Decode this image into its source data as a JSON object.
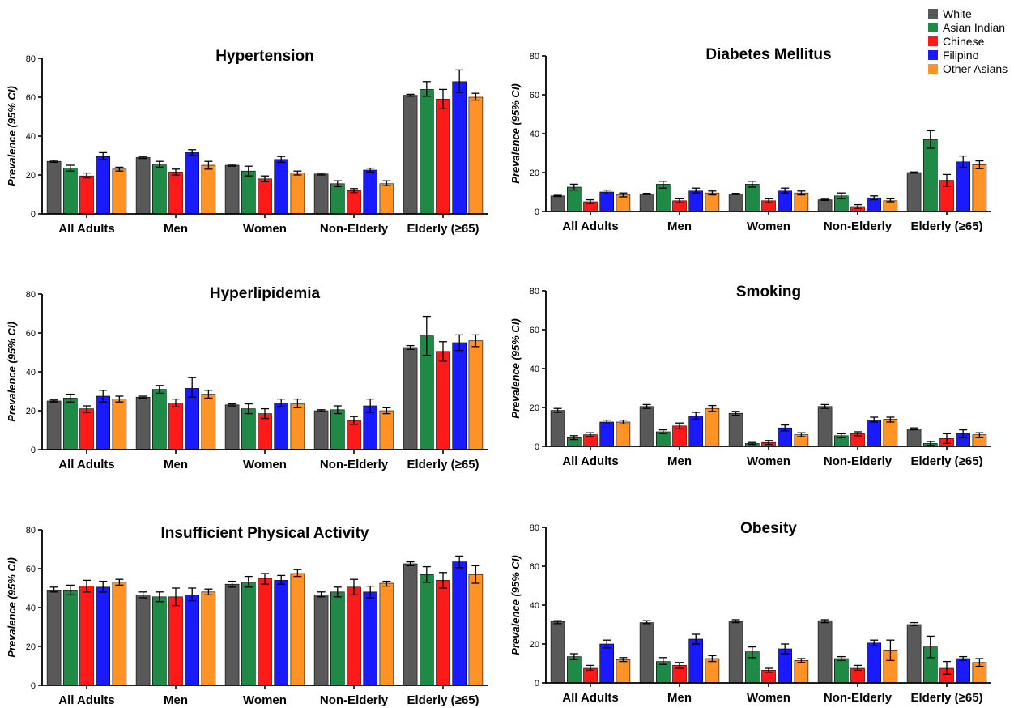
{
  "legend": {
    "items": [
      {
        "label": "White",
        "color": "#595959"
      },
      {
        "label": "Asian Indian",
        "color": "#1e8a46"
      },
      {
        "label": "Chinese",
        "color": "#ff1a1a"
      },
      {
        "label": "Filipino",
        "color": "#1a1aff"
      },
      {
        "label": "Other Asians",
        "color": "#ff9326"
      }
    ]
  },
  "chart_data": [
    {
      "type": "bar",
      "title": "Hypertension",
      "ylabel": "Prevalence (95% CI)",
      "ylim": [
        0,
        80
      ],
      "yticks": [
        "0",
        "20",
        "40",
        "60",
        "80"
      ],
      "categories": [
        "All Adults",
        "Men",
        "Women",
        "Non-Elderly",
        "Elderly (≥65)"
      ],
      "series": [
        {
          "name": "White",
          "values": [
            27,
            29,
            25,
            20.5,
            61
          ],
          "ci": [
            [
              26.5,
              27.5
            ],
            [
              28.5,
              29.5
            ],
            [
              24.5,
              25.5
            ],
            [
              20,
              21
            ],
            [
              60.5,
              61.5
            ]
          ]
        },
        {
          "name": "Asian Indian",
          "values": [
            23.5,
            25.5,
            22,
            15.5,
            64
          ],
          "ci": [
            [
              22,
              25
            ],
            [
              24,
              27
            ],
            [
              19.5,
              24.5
            ],
            [
              14,
              17
            ],
            [
              60.5,
              68
            ]
          ]
        },
        {
          "name": "Chinese",
          "values": [
            19.5,
            21.5,
            18,
            12,
            59
          ],
          "ci": [
            [
              18.5,
              21
            ],
            [
              20,
              23
            ],
            [
              16.5,
              19.5
            ],
            [
              11,
              13
            ],
            [
              54,
              64
            ]
          ]
        },
        {
          "name": "Filipino",
          "values": [
            29.5,
            31.5,
            28,
            22.5,
            68
          ],
          "ci": [
            [
              28,
              31.5
            ],
            [
              30,
              33
            ],
            [
              26.5,
              29.5
            ],
            [
              21.5,
              23.5
            ],
            [
              62.5,
              74
            ]
          ]
        },
        {
          "name": "Other Asians",
          "values": [
            23,
            25,
            21,
            15.5,
            60
          ],
          "ci": [
            [
              22,
              24
            ],
            [
              23,
              27
            ],
            [
              20,
              22
            ],
            [
              14.5,
              17
            ],
            [
              58.5,
              62
            ]
          ]
        }
      ]
    },
    {
      "type": "bar",
      "title": "Diabetes Mellitus",
      "ylabel": "Prevalence (95% CI)",
      "ylim": [
        0,
        80
      ],
      "yticks": [
        "0",
        "20",
        "40",
        "60",
        "80"
      ],
      "categories": [
        "All Adults",
        "Men",
        "Women",
        "Non-Elderly",
        "Elderly (≥65)"
      ],
      "series": [
        {
          "name": "White",
          "values": [
            8,
            9,
            9,
            6,
            20
          ],
          "ci": [
            [
              7.7,
              8.3
            ],
            [
              8.7,
              9.3
            ],
            [
              8.7,
              9.3
            ],
            [
              5.7,
              6.3
            ],
            [
              19.7,
              20.3
            ]
          ]
        },
        {
          "name": "Asian Indian",
          "values": [
            12.5,
            14,
            14,
            8,
            37
          ],
          "ci": [
            [
              11,
              14
            ],
            [
              12,
              15.5
            ],
            [
              12.5,
              15.5
            ],
            [
              6.5,
              9.5
            ],
            [
              32.5,
              41.5
            ]
          ]
        },
        {
          "name": "Chinese",
          "values": [
            5,
            5.5,
            5.5,
            2.5,
            16
          ],
          "ci": [
            [
              4,
              6
            ],
            [
              4.5,
              6.5
            ],
            [
              4.5,
              6.5
            ],
            [
              1.5,
              3.5
            ],
            [
              13,
              19
            ]
          ]
        },
        {
          "name": "Filipino",
          "values": [
            10,
            10.5,
            10.5,
            7,
            25.5
          ],
          "ci": [
            [
              9,
              11
            ],
            [
              9.5,
              12
            ],
            [
              9.5,
              12
            ],
            [
              6,
              8
            ],
            [
              22.5,
              28.5
            ]
          ]
        },
        {
          "name": "Other Asians",
          "values": [
            8.5,
            9.5,
            9.5,
            5.5,
            24
          ],
          "ci": [
            [
              7.5,
              9.5
            ],
            [
              8.5,
              10.5
            ],
            [
              8.5,
              10.5
            ],
            [
              5,
              6.5
            ],
            [
              22,
              26
            ]
          ]
        }
      ]
    },
    {
      "type": "bar",
      "title": "Hyperlipidemia",
      "ylabel": "Prevalence (95% CI)",
      "ylim": [
        0,
        80
      ],
      "yticks": [
        "0",
        "20",
        "40",
        "60",
        "80"
      ],
      "categories": [
        "All Adults",
        "Men",
        "Women",
        "Non-Elderly",
        "Elderly (≥65)"
      ],
      "series": [
        {
          "name": "White",
          "values": [
            25,
            27,
            23,
            20,
            52.5
          ],
          "ci": [
            [
              24.5,
              25.5
            ],
            [
              26.5,
              27.5
            ],
            [
              22.5,
              23.5
            ],
            [
              19.5,
              20.5
            ],
            [
              51.5,
              53.5
            ]
          ]
        },
        {
          "name": "Asian Indian",
          "values": [
            26.5,
            31,
            21,
            20.5,
            58.5
          ],
          "ci": [
            [
              24.5,
              28.5
            ],
            [
              29,
              33
            ],
            [
              18.5,
              23.5
            ],
            [
              18.5,
              22.5
            ],
            [
              48.5,
              68.5
            ]
          ]
        },
        {
          "name": "Chinese",
          "values": [
            21,
            24,
            18.5,
            15,
            50.5
          ],
          "ci": [
            [
              19,
              22.5
            ],
            [
              22,
              26
            ],
            [
              16,
              21
            ],
            [
              13,
              17
            ],
            [
              45.5,
              55.5
            ]
          ]
        },
        {
          "name": "Filipino",
          "values": [
            27.5,
            31.5,
            24,
            22.5,
            55
          ],
          "ci": [
            [
              24.5,
              30.5
            ],
            [
              27,
              37
            ],
            [
              22,
              26
            ],
            [
              19,
              26
            ],
            [
              51,
              59
            ]
          ]
        },
        {
          "name": "Other Asians",
          "values": [
            26,
            28.5,
            23.5,
            20,
            56
          ],
          "ci": [
            [
              24.5,
              27.5
            ],
            [
              26.5,
              30.5
            ],
            [
              21.5,
              26
            ],
            [
              18.5,
              21.5
            ],
            [
              53,
              59
            ]
          ]
        }
      ]
    },
    {
      "type": "bar",
      "title": "Smoking",
      "ylabel": "Prevalence (95% CI)",
      "ylim": [
        0,
        80
      ],
      "yticks": [
        "0",
        "20",
        "40",
        "60",
        "80"
      ],
      "categories": [
        "All Adults",
        "Men",
        "Women",
        "Non-Elderly",
        "Elderly (≥65)"
      ],
      "series": [
        {
          "name": "White",
          "values": [
            18.5,
            20.5,
            17,
            20.5,
            9
          ],
          "ci": [
            [
              17.5,
              19.5
            ],
            [
              19.5,
              21.5
            ],
            [
              16,
              18
            ],
            [
              19.5,
              21.5
            ],
            [
              8.5,
              9.5
            ]
          ]
        },
        {
          "name": "Asian Indian",
          "values": [
            4.5,
            7.5,
            1.5,
            5.5,
            1.5
          ],
          "ci": [
            [
              3.5,
              5.5
            ],
            [
              6.5,
              8.5
            ],
            [
              1,
              2
            ],
            [
              4.5,
              6.5
            ],
            [
              0.5,
              2.5
            ]
          ]
        },
        {
          "name": "Chinese",
          "values": [
            6,
            10.5,
            2,
            6.5,
            4
          ],
          "ci": [
            [
              5,
              7
            ],
            [
              9,
              12
            ],
            [
              1,
              3
            ],
            [
              5.5,
              7.5
            ],
            [
              1.5,
              6.5
            ]
          ]
        },
        {
          "name": "Filipino",
          "values": [
            12.5,
            15.5,
            9.5,
            13.5,
            6.5
          ],
          "ci": [
            [
              11.5,
              13.5
            ],
            [
              14,
              17.5
            ],
            [
              8,
              11
            ],
            [
              12.5,
              15
            ],
            [
              4.5,
              8.5
            ]
          ]
        },
        {
          "name": "Other Asians",
          "values": [
            12.5,
            19.5,
            6,
            14,
            6
          ],
          "ci": [
            [
              11.5,
              13.5
            ],
            [
              18,
              21
            ],
            [
              5,
              7
            ],
            [
              12.5,
              15
            ],
            [
              4.5,
              7
            ]
          ]
        }
      ]
    },
    {
      "type": "bar",
      "title": "Insufficient Physical Activity",
      "ylabel": "Prevalence (95% CI)",
      "ylim": [
        0,
        80
      ],
      "yticks": [
        "0",
        "20",
        "40",
        "60",
        "80"
      ],
      "categories": [
        "All Adults",
        "Men",
        "Women",
        "Non-Elderly",
        "Elderly (≥65)"
      ],
      "series": [
        {
          "name": "White",
          "values": [
            49,
            46.5,
            52,
            46.5,
            62.5
          ],
          "ci": [
            [
              48,
              50.5
            ],
            [
              45,
              48
            ],
            [
              50.5,
              53.5
            ],
            [
              45.5,
              48
            ],
            [
              61.5,
              63.5
            ]
          ]
        },
        {
          "name": "Asian Indian",
          "values": [
            49,
            45.5,
            53,
            48,
            57
          ],
          "ci": [
            [
              46.5,
              51.5
            ],
            [
              43,
              48
            ],
            [
              50.5,
              56
            ],
            [
              45.5,
              50.5
            ],
            [
              53,
              61
            ]
          ]
        },
        {
          "name": "Chinese",
          "values": [
            51,
            45.5,
            55,
            50.5,
            54
          ],
          "ci": [
            [
              48,
              54
            ],
            [
              41,
              50
            ],
            [
              52,
              57.5
            ],
            [
              46.5,
              54.5
            ],
            [
              50,
              58
            ]
          ]
        },
        {
          "name": "Filipino",
          "values": [
            50.5,
            46.5,
            54,
            48,
            63.5
          ],
          "ci": [
            [
              48,
              53.5
            ],
            [
              43.5,
              50
            ],
            [
              52,
              56.5
            ],
            [
              45,
              51
            ],
            [
              60.5,
              66.5
            ]
          ]
        },
        {
          "name": "Other Asians",
          "values": [
            53,
            48,
            57.5,
            52.5,
            57
          ],
          "ci": [
            [
              51.5,
              54.5
            ],
            [
              46.5,
              49.5
            ],
            [
              56,
              59.5
            ],
            [
              51,
              53.5
            ],
            [
              52.5,
              61.5
            ]
          ]
        }
      ]
    },
    {
      "type": "bar",
      "title": "Obesity",
      "ylabel": "Prevalence (95% CI)",
      "ylim": [
        0,
        80
      ],
      "yticks": [
        "0",
        "20",
        "40",
        "60",
        "80"
      ],
      "categories": [
        "All Adults",
        "Men",
        "Women",
        "Non-Elderly",
        "Elderly (≥65)"
      ],
      "series": [
        {
          "name": "White",
          "values": [
            31.5,
            31,
            31.5,
            32,
            30
          ],
          "ci": [
            [
              30.5,
              32
            ],
            [
              30.5,
              32
            ],
            [
              31,
              32.5
            ],
            [
              31,
              32.5
            ],
            [
              29.5,
              31
            ]
          ]
        },
        {
          "name": "Asian Indian",
          "values": [
            13.5,
            11,
            16,
            12.5,
            18.5
          ],
          "ci": [
            [
              12,
              15
            ],
            [
              9.5,
              13
            ],
            [
              13,
              18.5
            ],
            [
              11.5,
              13.5
            ],
            [
              13,
              24
            ]
          ]
        },
        {
          "name": "Chinese",
          "values": [
            7.5,
            9,
            6.5,
            7.5,
            7.5
          ],
          "ci": [
            [
              6.5,
              9
            ],
            [
              7.5,
              10.5
            ],
            [
              5.5,
              7.5
            ],
            [
              6.5,
              9
            ],
            [
              4.5,
              11
            ]
          ]
        },
        {
          "name": "Filipino",
          "values": [
            20,
            22.5,
            17.5,
            20.5,
            12.5
          ],
          "ci": [
            [
              18,
              22
            ],
            [
              20,
              25
            ],
            [
              15,
              20
            ],
            [
              19,
              22
            ],
            [
              11.5,
              13.5
            ]
          ]
        },
        {
          "name": "Other Asians",
          "values": [
            12,
            12.5,
            11.5,
            16.5,
            10.5
          ],
          "ci": [
            [
              11,
              13
            ],
            [
              11,
              14
            ],
            [
              10.5,
              12.5
            ],
            [
              11.5,
              22
            ],
            [
              8.5,
              12.5
            ]
          ]
        }
      ]
    }
  ]
}
